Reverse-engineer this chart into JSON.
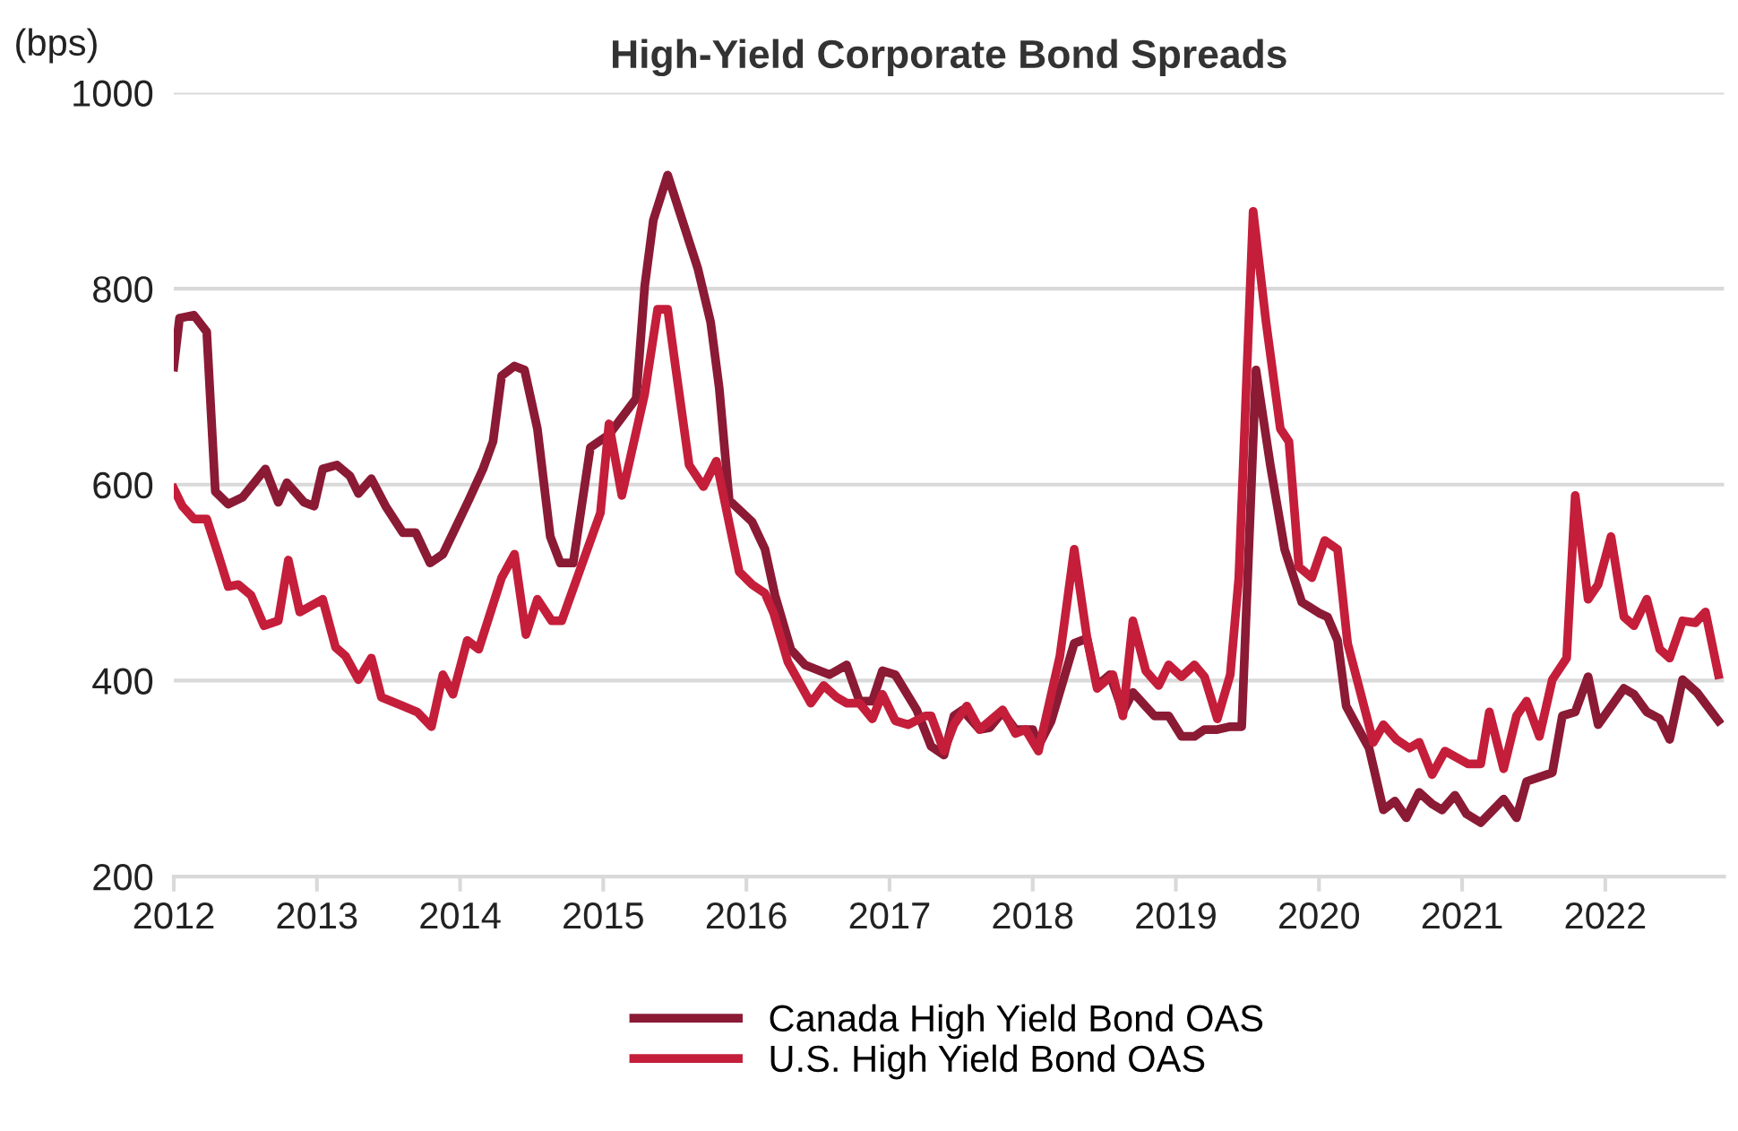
{
  "chart_data": {
    "type": "line",
    "title": "High-Yield Corporate Bond Spreads",
    "ylabel": "(bps)",
    "xlim": [
      2012,
      2022.83
    ],
    "xticks": [
      2012,
      2013,
      2014,
      2015,
      2016,
      2017,
      2018,
      2019,
      2020,
      2021,
      2022
    ],
    "ylim": [
      200,
      1000
    ],
    "yticks": [
      200,
      400,
      600,
      800,
      1000
    ],
    "grid": "y",
    "legend": "bottom",
    "marker": "none",
    "line_style": "solid",
    "series": [
      {
        "name": "Canada High Yield Bond OAS",
        "color": "#8b1a35",
        "x": [
          2012.0,
          2012.04,
          2012.14,
          2012.23,
          2012.29,
          2012.38,
          2012.48,
          2012.64,
          2012.73,
          2012.79,
          2012.91,
          2012.98,
          2013.04,
          2013.14,
          2013.23,
          2013.29,
          2013.38,
          2013.48,
          2013.6,
          2013.69,
          2013.79,
          2013.88,
          2014.06,
          2014.16,
          2014.23,
          2014.29,
          2014.38,
          2014.45,
          2014.54,
          2014.63,
          2014.7,
          2014.79,
          2014.91,
          2015.04,
          2015.23,
          2015.29,
          2015.35,
          2015.45,
          2015.66,
          2015.75,
          2015.81,
          2015.88,
          2016.04,
          2016.13,
          2016.2,
          2016.31,
          2016.41,
          2016.58,
          2016.7,
          2016.79,
          2016.88,
          2016.95,
          2017.04,
          2017.19,
          2017.29,
          2017.38,
          2017.45,
          2017.51,
          2017.63,
          2017.7,
          2017.79,
          2017.88,
          2018.0,
          2018.04,
          2018.13,
          2018.29,
          2018.38,
          2018.45,
          2018.54,
          2018.63,
          2018.7,
          2018.85,
          2018.95,
          2019.04,
          2019.13,
          2019.2,
          2019.29,
          2019.38,
          2019.46,
          2019.56,
          2019.66,
          2019.76,
          2019.88,
          2020.0,
          2020.06,
          2020.13,
          2020.19,
          2020.26,
          2020.35,
          2020.45,
          2020.53,
          2020.61,
          2020.7,
          2020.79,
          2020.86,
          2020.95,
          2021.03,
          2021.13,
          2021.29,
          2021.38,
          2021.45,
          2021.63,
          2021.7,
          2021.79,
          2021.88,
          2021.95,
          2022.13,
          2022.2,
          2022.29,
          2022.38,
          2022.45,
          2022.54,
          2022.64,
          2022.79
        ],
        "values": [
          720,
          770,
          773,
          756,
          593,
          580,
          587,
          616,
          582,
          602,
          582,
          578,
          616,
          620,
          609,
          591,
          606,
          578,
          551,
          551,
          520,
          529,
          584,
          616,
          644,
          711,
          721,
          717,
          657,
          547,
          520,
          520,
          638,
          651,
          688,
          803,
          870,
          916,
          821,
          766,
          699,
          584,
          562,
          534,
          487,
          432,
          416,
          406,
          416,
          379,
          379,
          410,
          406,
          370,
          333,
          324,
          364,
          370,
          350,
          352,
          368,
          350,
          350,
          333,
          359,
          438,
          443,
          395,
          406,
          368,
          388,
          364,
          364,
          343,
          343,
          350,
          350,
          353,
          353,
          717,
          620,
          534,
          480,
          469,
          465,
          441,
          374,
          355,
          331,
          268,
          277,
          260,
          286,
          274,
          268,
          283,
          264,
          255,
          279,
          260,
          297,
          306,
          364,
          368,
          404,
          355,
          392,
          386,
          368,
          361,
          340,
          401,
          388,
          359
        ]
      },
      {
        "name": "U.S. High Yield Bond OAS",
        "color": "#c41e3a",
        "x": [
          2012.0,
          2012.06,
          2012.14,
          2012.23,
          2012.31,
          2012.38,
          2012.45,
          2012.54,
          2012.63,
          2012.73,
          2012.8,
          2012.88,
          2013.04,
          2013.13,
          2013.2,
          2013.29,
          2013.38,
          2013.45,
          2013.6,
          2013.7,
          2013.8,
          2013.88,
          2013.95,
          2014.05,
          2014.13,
          2014.29,
          2014.38,
          2014.46,
          2014.54,
          2014.64,
          2014.71,
          2014.98,
          2015.04,
          2015.13,
          2015.29,
          2015.38,
          2015.45,
          2015.51,
          2015.6,
          2015.7,
          2015.79,
          2015.95,
          2016.04,
          2016.13,
          2016.19,
          2016.29,
          2016.45,
          2016.54,
          2016.63,
          2016.7,
          2016.79,
          2016.88,
          2016.95,
          2017.04,
          2017.13,
          2017.25,
          2017.29,
          2017.38,
          2017.45,
          2017.54,
          2017.63,
          2017.79,
          2017.88,
          2017.95,
          2018.04,
          2018.19,
          2018.29,
          2018.38,
          2018.45,
          2018.56,
          2018.63,
          2018.7,
          2018.79,
          2018.88,
          2018.95,
          2019.04,
          2019.13,
          2019.2,
          2019.29,
          2019.38,
          2019.44,
          2019.54,
          2019.63,
          2019.73,
          2019.79,
          2019.86,
          2019.95,
          2020.04,
          2020.13,
          2020.2,
          2020.38,
          2020.45,
          2020.54,
          2020.63,
          2020.7,
          2020.79,
          2020.88,
          2021.04,
          2021.13,
          2021.19,
          2021.29,
          2021.38,
          2021.45,
          2021.54,
          2021.63,
          2021.73,
          2021.79,
          2021.88,
          2021.95,
          2022.04,
          2022.13,
          2022.2,
          2022.29,
          2022.38,
          2022.45,
          2022.54,
          2022.63,
          2022.7,
          2022.79
        ],
        "values": [
          596,
          578,
          565,
          565,
          529,
          496,
          498,
          487,
          456,
          461,
          523,
          470,
          483,
          434,
          425,
          401,
          423,
          383,
          374,
          368,
          353,
          406,
          386,
          441,
          432,
          505,
          529,
          447,
          483,
          461,
          461,
          571,
          662,
          589,
          693,
          779,
          779,
          715,
          620,
          598,
          624,
          511,
          498,
          489,
          469,
          419,
          377,
          395,
          383,
          377,
          377,
          361,
          386,
          359,
          355,
          364,
          364,
          328,
          355,
          374,
          350,
          370,
          346,
          350,
          328,
          425,
          534,
          443,
          392,
          406,
          364,
          461,
          410,
          395,
          416,
          404,
          416,
          404,
          361,
          406,
          505,
          879,
          766,
          657,
          644,
          516,
          505,
          543,
          534,
          438,
          337,
          355,
          340,
          331,
          337,
          304,
          328,
          315,
          315,
          368,
          310,
          364,
          379,
          343,
          401,
          423,
          589,
          483,
          498,
          547,
          465,
          456,
          483,
          432,
          423,
          461,
          459,
          470,
          406
        ]
      }
    ]
  }
}
